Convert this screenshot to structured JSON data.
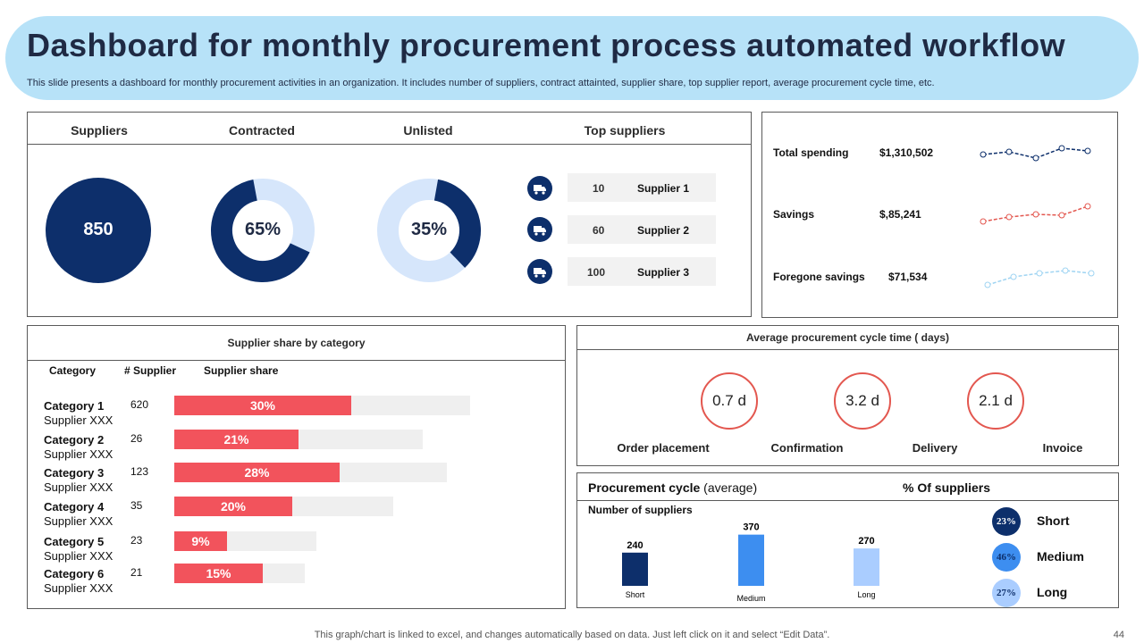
{
  "header": {
    "title": "Dashboard for monthly procurement process automated workflow",
    "subtitle": "This slide presents a dashboard for monthly procurement activities in an organization. It includes number of suppliers, contract attainted, supplier share, top supplier report, average procurement cycle time, etc."
  },
  "kpis": {
    "suppliers_head": "Suppliers",
    "contracted_head": "Contracted",
    "unlisted_head": "Unlisted",
    "top_head": "Top suppliers",
    "suppliers_value": "850",
    "contracted_value": "65%",
    "contracted_fraction": 0.65,
    "unlisted_value": "35%",
    "unlisted_fraction": 0.35
  },
  "top_suppliers": [
    {
      "count": "10",
      "name": "Supplier 1"
    },
    {
      "count": "60",
      "name": "Supplier 2"
    },
    {
      "count": "100",
      "name": "Supplier 3"
    }
  ],
  "spending": [
    {
      "label": "Total spending",
      "value": "$1,310,502"
    },
    {
      "label": "Savings",
      "value": "$,85,241"
    },
    {
      "label": "Foregone savings",
      "value": "$71,534"
    }
  ],
  "share": {
    "title": "Supplier share by category",
    "col_category": "Category",
    "col_supplier": "# Supplier",
    "col_share": "Supplier share",
    "rows": [
      {
        "name": "Category 1",
        "sub": "Supplier XXX",
        "count": "620",
        "pct": "30%",
        "share": 30,
        "track": 100
      },
      {
        "name": "Category 2",
        "sub": "Supplier XXX",
        "count": "26",
        "pct": "21%",
        "share": 21,
        "track": 84
      },
      {
        "name": "Category 3",
        "sub": "Supplier XXX",
        "count": "123",
        "pct": "28%",
        "share": 28,
        "track": 92
      },
      {
        "name": "Category 4",
        "sub": "Supplier XXX",
        "count": "35",
        "pct": "20%",
        "share": 20,
        "track": 74
      },
      {
        "name": "Category 5",
        "sub": "Supplier XXX",
        "count": "23",
        "pct": "9%",
        "share": 9,
        "track": 48
      },
      {
        "name": "Category 6",
        "sub": "Supplier XXX",
        "count": "21",
        "pct": "15%",
        "share": 15,
        "track": 44
      }
    ]
  },
  "cycle_time": {
    "title": "Average procurement cycle time ( days)",
    "values": [
      "0.7  d",
      "3.2  d",
      "2.1 d"
    ],
    "stages": [
      "Order placement",
      "Confirmation",
      "Delivery",
      "Invoice"
    ]
  },
  "procurement": {
    "title_bold": "Procurement cycle",
    "title_rest": " (average)",
    "pct_head": "% Of  suppliers",
    "sub": "Number of suppliers",
    "bars": [
      {
        "label": "Short",
        "value": 240,
        "value_text": "240",
        "color": "#0d2f6b"
      },
      {
        "label": "Medium",
        "value": 370,
        "value_text": "370",
        "color": "#3d8ef0"
      },
      {
        "label": "Long",
        "value": 270,
        "value_text": "270",
        "color": "#aacdff"
      }
    ],
    "legend": [
      {
        "pct": "23%",
        "label": "Short",
        "color": "#0d2f6b",
        "text_color": "#ffffff"
      },
      {
        "pct": "46%",
        "label": "Medium",
        "color": "#3d8ef0",
        "text_color": "#0d2f6b"
      },
      {
        "pct": "27%",
        "label": "Long",
        "color": "#aacdff",
        "text_color": "#0d2f6b"
      }
    ]
  },
  "footer": {
    "note": "This graph/chart is linked to excel,  and changes automatically based on data. Just left click on it and select “Edit Data”.",
    "page": "44"
  }
}
